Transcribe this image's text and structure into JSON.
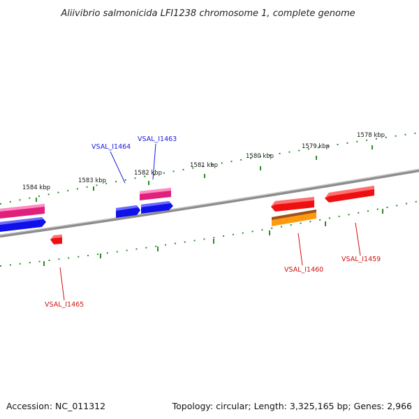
{
  "title": "Aliivibrio salmonicida LFI1238 chromosome 1, complete genome",
  "footer": {
    "accession": "Accession: NC_011312",
    "summary": "Topology: circular; Length: 3,325,165 bp; Genes: 2,966"
  },
  "scale_labels": [
    "1578 kbp",
    "1579 kbp",
    "1580 kbp",
    "1581 kbp",
    "1582 kbp",
    "1583 kbp",
    "1584 kbp"
  ],
  "gene_labels": {
    "vsal_i1464": "VSAL_I1464",
    "vsal_i1463": "VSAL_I1463",
    "vsal_i1460": "VSAL_I1460",
    "vsal_i1459": "VSAL_I1459",
    "vsal_i1465": "VSAL_I1465"
  },
  "colors": {
    "backbone": "#8c8c8c",
    "ticks": "#2a8a2a",
    "label_blue": "#1a1ad6",
    "label_red": "#d01010",
    "gene_blue": "#1010e8",
    "gene_pink": "#e0207a",
    "gene_red": "#ee1010",
    "gene_orange": "#ff9a10"
  }
}
